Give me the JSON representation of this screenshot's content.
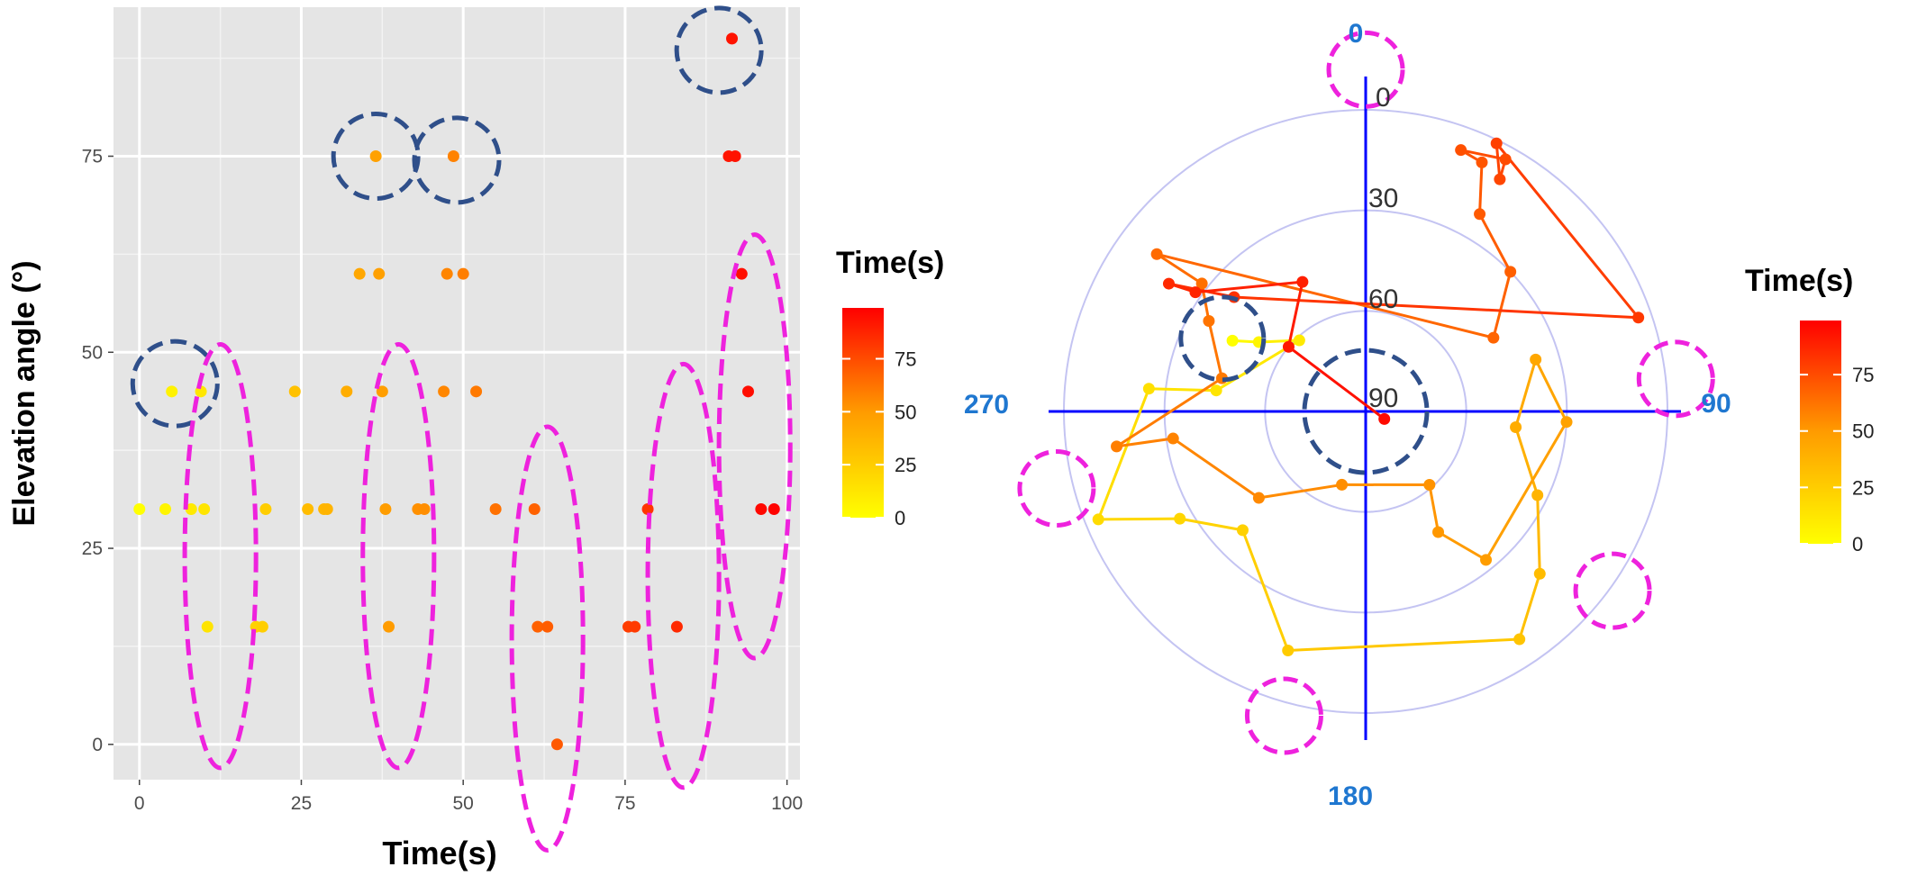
{
  "chart_data": [
    {
      "type": "scatter",
      "xlabel": "Time(s)",
      "ylabel": "Elevation angle (°)",
      "xlim": [
        -4,
        102
      ],
      "ylim": [
        -4.5,
        94
      ],
      "x_ticks": [
        0,
        25,
        50,
        75,
        100
      ],
      "y_ticks": [
        0,
        25,
        50,
        75
      ],
      "grid": true,
      "legend": {
        "title": "Time(s)",
        "position": "right",
        "ticks": [
          0,
          25,
          50,
          75
        ],
        "range": [
          0,
          99
        ],
        "colors": [
          "#ffff00",
          "#ff0000"
        ]
      },
      "points": [
        {
          "x": 0,
          "y": 30
        },
        {
          "x": 4,
          "y": 30
        },
        {
          "x": 5,
          "y": 45
        },
        {
          "x": 8,
          "y": 30
        },
        {
          "x": 9.5,
          "y": 45
        },
        {
          "x": 10,
          "y": 30
        },
        {
          "x": 10.5,
          "y": 15
        },
        {
          "x": 18,
          "y": 15
        },
        {
          "x": 19,
          "y": 15
        },
        {
          "x": 19.5,
          "y": 30
        },
        {
          "x": 24,
          "y": 45
        },
        {
          "x": 26,
          "y": 30
        },
        {
          "x": 28.5,
          "y": 30
        },
        {
          "x": 29,
          "y": 30
        },
        {
          "x": 32,
          "y": 45
        },
        {
          "x": 34,
          "y": 60
        },
        {
          "x": 36.5,
          "y": 75
        },
        {
          "x": 37,
          "y": 60
        },
        {
          "x": 37.5,
          "y": 45
        },
        {
          "x": 38,
          "y": 30
        },
        {
          "x": 38.5,
          "y": 15
        },
        {
          "x": 43,
          "y": 30
        },
        {
          "x": 44,
          "y": 30
        },
        {
          "x": 47,
          "y": 45
        },
        {
          "x": 47.5,
          "y": 60
        },
        {
          "x": 48.5,
          "y": 75
        },
        {
          "x": 50,
          "y": 60
        },
        {
          "x": 52,
          "y": 45
        },
        {
          "x": 55,
          "y": 30
        },
        {
          "x": 61,
          "y": 30
        },
        {
          "x": 61.5,
          "y": 15
        },
        {
          "x": 63,
          "y": 15
        },
        {
          "x": 64.5,
          "y": 0
        },
        {
          "x": 75.5,
          "y": 15
        },
        {
          "x": 76.5,
          "y": 15
        },
        {
          "x": 78.5,
          "y": 30
        },
        {
          "x": 83,
          "y": 15
        },
        {
          "x": 91,
          "y": 75
        },
        {
          "x": 91.5,
          "y": 90
        },
        {
          "x": 92,
          "y": 75
        },
        {
          "x": 93,
          "y": 60
        },
        {
          "x": 94,
          "y": 45
        },
        {
          "x": 96,
          "y": 30
        },
        {
          "x": 98,
          "y": 30
        }
      ],
      "annotations": {
        "blue_circles": [
          {
            "x": 5.5,
            "y": 46
          },
          {
            "x": 36.5,
            "y": 75
          },
          {
            "x": 49,
            "y": 74.5
          },
          {
            "x": 89.5,
            "y": 88.5
          }
        ],
        "magenta_ellipses": [
          {
            "x": 12.5,
            "y": 24,
            "rx": 5.5,
            "ry": 27
          },
          {
            "x": 40,
            "y": 24,
            "rx": 5.5,
            "ry": 27
          },
          {
            "x": 63,
            "y": 13.5,
            "rx": 5.5,
            "ry": 27
          },
          {
            "x": 84,
            "y": 21.5,
            "rx": 5.5,
            "ry": 27
          },
          {
            "x": 95,
            "y": 38,
            "rx": 5.5,
            "ry": 27
          }
        ]
      }
    },
    {
      "type": "polar",
      "angle_labels": [
        "0",
        "90",
        "180",
        "270"
      ],
      "radial_labels": [
        "0",
        "30",
        "60",
        "90"
      ],
      "elevation_rings": [
        0,
        30,
        60
      ],
      "legend": {
        "title": "Time(s)",
        "position": "right",
        "ticks": [
          0,
          25,
          50,
          75
        ],
        "range": [
          0,
          99
        ],
        "colors": [
          "#ffff00",
          "#ff0000"
        ]
      },
      "path": [
        {
          "az": 298,
          "el": 45,
          "t": 0
        },
        {
          "az": 303,
          "el": 52,
          "t": 4
        },
        {
          "az": 317,
          "el": 61,
          "t": 8
        },
        {
          "az": 278,
          "el": 45,
          "t": 10
        },
        {
          "az": 276,
          "el": 25,
          "t": 12
        },
        {
          "az": 248,
          "el": 4,
          "t": 14
        },
        {
          "az": 240,
          "el": 26,
          "t": 16
        },
        {
          "az": 226,
          "el": 39,
          "t": 18
        },
        {
          "az": 198,
          "el": 15,
          "t": 20
        },
        {
          "az": 146,
          "el": 8,
          "t": 23
        },
        {
          "az": 133,
          "el": 19,
          "t": 26
        },
        {
          "az": 116,
          "el": 33,
          "t": 29
        },
        {
          "az": 96,
          "el": 45,
          "t": 32
        },
        {
          "az": 73,
          "el": 37,
          "t": 34
        },
        {
          "az": 93,
          "el": 30,
          "t": 36
        },
        {
          "az": 141,
          "el": 33,
          "t": 38
        },
        {
          "az": 149,
          "el": 48,
          "t": 40
        },
        {
          "az": 139,
          "el": 61,
          "t": 42
        },
        {
          "az": 198,
          "el": 67,
          "t": 44
        },
        {
          "az": 231,
          "el": 49,
          "t": 46
        },
        {
          "az": 262,
          "el": 32,
          "t": 48
        },
        {
          "az": 262,
          "el": 15,
          "t": 50
        },
        {
          "az": 283,
          "el": 46,
          "t": 52
        },
        {
          "az": 300,
          "el": 36,
          "t": 54
        },
        {
          "az": 308,
          "el": 28,
          "t": 56
        },
        {
          "az": 307,
          "el": 12,
          "t": 58
        },
        {
          "az": 60,
          "el": 46,
          "t": 60
        },
        {
          "az": 46,
          "el": 30,
          "t": 62
        },
        {
          "az": 30,
          "el": 22,
          "t": 64
        },
        {
          "az": 25,
          "el": 8,
          "t": 66
        },
        {
          "az": 20,
          "el": 7,
          "t": 68
        },
        {
          "az": 29,
          "el": 4,
          "t": 70
        },
        {
          "az": 30,
          "el": 10,
          "t": 72
        },
        {
          "az": 26,
          "el": 1,
          "t": 74
        },
        {
          "az": 71,
          "el": 4,
          "t": 77
        },
        {
          "az": 311,
          "el": 38,
          "t": 80
        },
        {
          "az": 303,
          "el": 20,
          "t": 83
        },
        {
          "az": 305,
          "el": 28,
          "t": 85
        },
        {
          "az": 334,
          "el": 47,
          "t": 87
        },
        {
          "az": 310,
          "el": 60,
          "t": 90
        },
        {
          "az": 112,
          "el": 84,
          "t": 95
        }
      ],
      "annotations": {
        "magenta_circles": [
          {
            "az": 0,
            "el": -12
          },
          {
            "az": 84,
            "el": -3
          },
          {
            "az": 126,
            "el": -1
          },
          {
            "az": 195,
            "el": -4
          },
          {
            "az": 256,
            "el": -5
          }
        ],
        "blue_circles": [
          {
            "az": 297,
            "el": 42
          },
          {
            "az": 0,
            "el": 90
          }
        ]
      }
    }
  ]
}
